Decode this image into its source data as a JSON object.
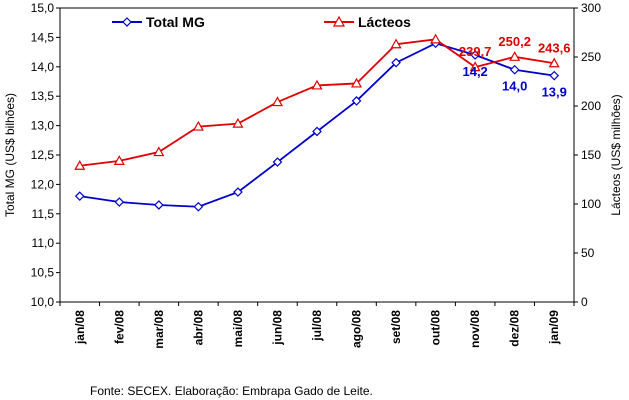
{
  "chart_data": {
    "type": "line",
    "categories": [
      "jan/08",
      "fev/08",
      "mar/08",
      "abr/08",
      "mai/08",
      "jun/08",
      "jul/08",
      "ago/08",
      "set/08",
      "out/08",
      "nov/08",
      "dez/08",
      "jan/09"
    ],
    "series": [
      {
        "name": "Total MG",
        "axis": "left",
        "color": "#0000cc",
        "marker": "diamond",
        "values": [
          11.8,
          11.7,
          11.65,
          11.62,
          11.87,
          12.38,
          12.9,
          13.42,
          14.07,
          14.4,
          14.2,
          13.95,
          13.85
        ]
      },
      {
        "name": "Lácteos",
        "axis": "right",
        "color": "#e00000",
        "marker": "triangle",
        "values": [
          139,
          144,
          153,
          179,
          182,
          204,
          221,
          223,
          263,
          268,
          239.7,
          250.2,
          243.6
        ]
      }
    ],
    "data_labels": [
      {
        "series": 0,
        "index": 10,
        "text": "14,2"
      },
      {
        "series": 0,
        "index": 11,
        "text": "14,0"
      },
      {
        "series": 0,
        "index": 12,
        "text": "13,9"
      },
      {
        "series": 1,
        "index": 10,
        "text": "239,7"
      },
      {
        "series": 1,
        "index": 11,
        "text": "250,2"
      },
      {
        "series": 1,
        "index": 12,
        "text": "243,6"
      }
    ],
    "ylabel_left": "Total MG (US$ bilhões)",
    "ylabel_right": "Lácteos (US$ milhões)",
    "ylim_left": [
      10.0,
      15.0
    ],
    "ylim_right": [
      0,
      300
    ],
    "yticks_left": [
      "10,0",
      "10,5",
      "11,0",
      "11,5",
      "12,0",
      "12,5",
      "13,0",
      "13,5",
      "14,0",
      "14,5",
      "15,0"
    ],
    "yticks_right": [
      "0",
      "50",
      "100",
      "150",
      "200",
      "250",
      "300"
    ],
    "grid": false,
    "legend_position": "top"
  },
  "source": "Fonte: SECEX. Elaboração: Embrapa Gado de Leite."
}
